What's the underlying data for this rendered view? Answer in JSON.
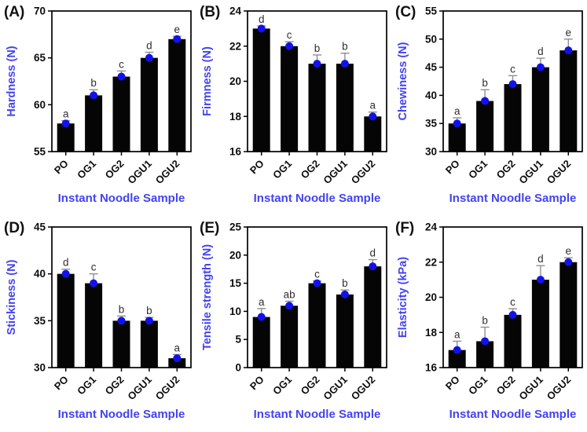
{
  "colors": {
    "bar": "#050505",
    "dot": "#1212e8",
    "axis_title_blue": "#4343f2",
    "error_bar": "#8f8f8f",
    "sig_letter": "#2f2f2f",
    "frame": "#000000",
    "tick_text": "#0d0d0d"
  },
  "chart_data": [
    {
      "type": "bar",
      "panel_label": "(A)",
      "categories": [
        "PO",
        "OG1",
        "OG2",
        "OGU1",
        "OGU2"
      ],
      "values": [
        58,
        61,
        63,
        65,
        67
      ],
      "errors": [
        0.3,
        0.6,
        0.6,
        0.6,
        0.3
      ],
      "sig_letters": [
        "a",
        "b",
        "c",
        "d",
        "e"
      ],
      "ylabel": "Hardness (N)",
      "xlabel": "Instant Noodle Sample",
      "ylim": [
        55,
        70
      ],
      "yticks": [
        55,
        60,
        65,
        70
      ]
    },
    {
      "type": "bar",
      "panel_label": "(B)",
      "categories": [
        "PO",
        "OG1",
        "OG2",
        "OGU1",
        "OGU2"
      ],
      "values": [
        23,
        22,
        21,
        21,
        18
      ],
      "errors": [
        0.15,
        0.25,
        0.5,
        0.6,
        0.25
      ],
      "sig_letters": [
        "d",
        "c",
        "b",
        "b",
        "a"
      ],
      "ylabel": "Firmness (N)",
      "xlabel": "Instant Noodle Sample",
      "ylim": [
        16,
        24
      ],
      "yticks": [
        16,
        18,
        20,
        22,
        24
      ]
    },
    {
      "type": "bar",
      "panel_label": "(C)",
      "categories": [
        "PO",
        "OG1",
        "OG2",
        "OGU1",
        "OGU2"
      ],
      "values": [
        35,
        39,
        42,
        45,
        48
      ],
      "errors": [
        1,
        2,
        1.5,
        1.6,
        2
      ],
      "sig_letters": [
        "a",
        "b",
        "c",
        "d",
        "e"
      ],
      "ylabel": "Chewiness (N)",
      "xlabel": "Instant Noodle Sample",
      "ylim": [
        30,
        55
      ],
      "yticks": [
        30,
        35,
        40,
        45,
        50,
        55
      ]
    },
    {
      "type": "bar",
      "panel_label": "(D)",
      "categories": [
        "PO",
        "OG1",
        "OG2",
        "OGU1",
        "OGU2"
      ],
      "values": [
        40,
        39,
        35,
        35,
        31
      ],
      "errors": [
        0.5,
        1,
        0.5,
        0.35,
        0.4
      ],
      "sig_letters": [
        "d",
        "c",
        "b",
        "b",
        "a"
      ],
      "ylabel": "Stickiness (N)",
      "xlabel": "Instant Noodle Sample",
      "ylim": [
        30,
        45
      ],
      "yticks": [
        30,
        35,
        40,
        45
      ]
    },
    {
      "type": "bar",
      "panel_label": "(E)",
      "categories": [
        "PO",
        "OG1",
        "OG2",
        "OGU1",
        "OGU2"
      ],
      "values": [
        9,
        11,
        15,
        13,
        18
      ],
      "errors": [
        1.5,
        0.8,
        0.4,
        0.8,
        1.2
      ],
      "sig_letters": [
        "a",
        "ab",
        "c",
        "b",
        "d"
      ],
      "ylabel": "Tensile strength (N)",
      "xlabel": "Instant Noodle Sample",
      "ylim": [
        0,
        25
      ],
      "yticks": [
        0,
        5,
        10,
        15,
        20,
        25
      ]
    },
    {
      "type": "bar",
      "panel_label": "(F)",
      "categories": [
        "PO",
        "OG1",
        "OG2",
        "OGU1",
        "OGU2"
      ],
      "values": [
        17,
        17.5,
        19,
        21,
        22
      ],
      "errors": [
        0.5,
        0.8,
        0.35,
        0.8,
        0.25
      ],
      "sig_letters": [
        "a",
        "b",
        "c",
        "d",
        "e"
      ],
      "ylabel": "Elasticity (kPa)",
      "xlabel": "Instant Noodle Sample",
      "ylim": [
        16,
        24
      ],
      "yticks": [
        16,
        18,
        20,
        22,
        24
      ]
    }
  ]
}
